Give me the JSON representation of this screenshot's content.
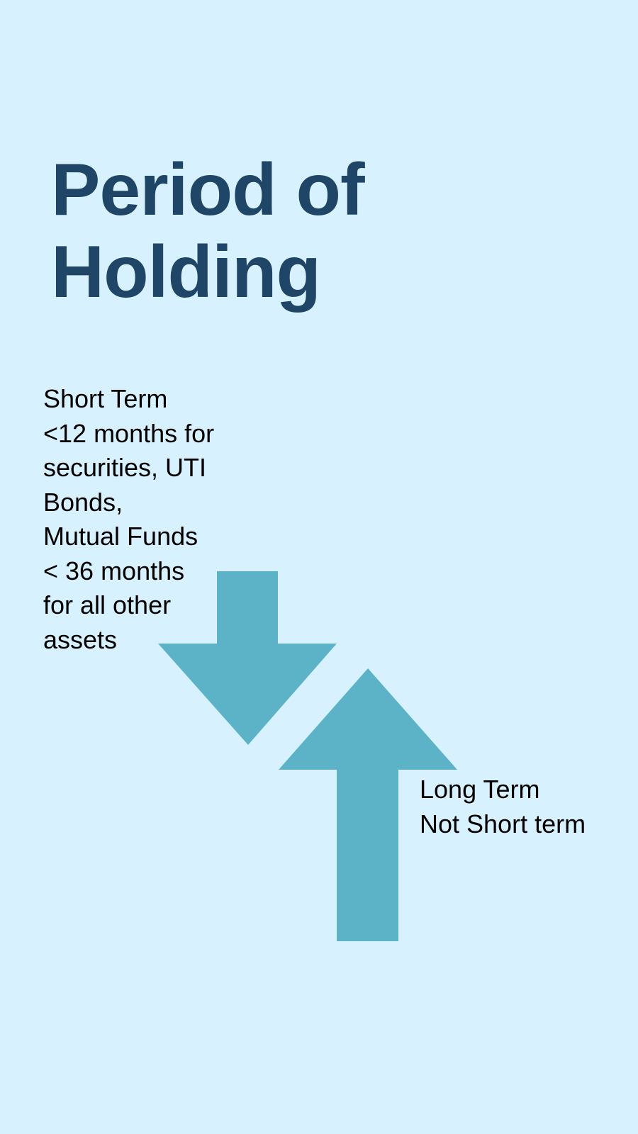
{
  "colors": {
    "background": "#d7f2fe",
    "title": "#1f4567",
    "arrow": "#5cb3c7",
    "text": "#000000"
  },
  "title": {
    "line1": "Period of",
    "line2": "Holding"
  },
  "short_term": {
    "lines": [
      "Short Term",
      "<12 months for",
      "securities, UTI",
      "Bonds,",
      "Mutual Funds",
      "< 36 months",
      "for all other",
      "assets"
    ]
  },
  "long_term": {
    "lines": [
      "Long Term",
      "Not Short term"
    ]
  },
  "arrows": {
    "down": {
      "direction": "down",
      "icon": "down-arrow-icon"
    },
    "up": {
      "direction": "up",
      "icon": "up-arrow-icon"
    }
  }
}
